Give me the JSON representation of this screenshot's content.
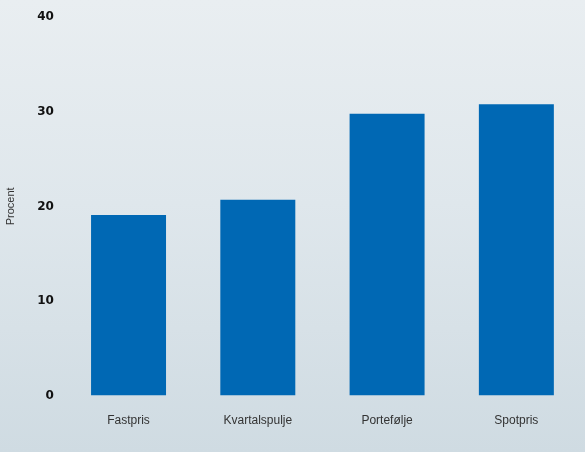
{
  "chart_data": {
    "type": "bar",
    "categories": [
      "Fastpris",
      "Kvartalspulje",
      "Portefølje",
      "Spotpris"
    ],
    "values": [
      19.1,
      20.7,
      29.8,
      30.8
    ],
    "color": "#0068b4",
    "y_label": "Procent",
    "ylim": [
      0,
      40
    ],
    "yticks": [
      0,
      10,
      20,
      30,
      40
    ],
    "grid": false
  }
}
